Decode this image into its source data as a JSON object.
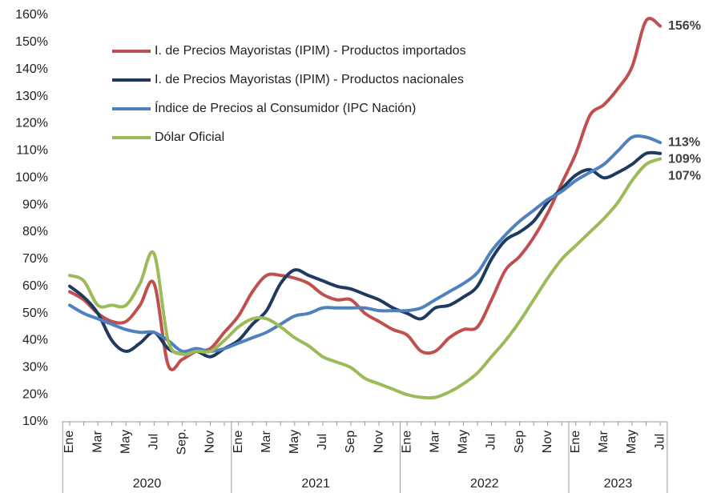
{
  "chart_data": {
    "type": "line",
    "categories": [
      "Ene",
      null,
      "Mar",
      null,
      "May",
      null,
      "Jul",
      null,
      "Sep.",
      null,
      "Nov",
      null,
      "Ene",
      null,
      "Mar",
      null,
      "May",
      null,
      "Jul",
      null,
      "Sep",
      null,
      "Nov",
      null,
      "Ene",
      null,
      "Mar",
      null,
      "May",
      null,
      "Jul",
      null,
      "Sep",
      null,
      "Nov",
      null,
      "Ene",
      null,
      "Mar",
      null,
      "May",
      null,
      "Jul"
    ],
    "years": [
      "2020",
      "2021",
      "2022",
      "2023"
    ],
    "ylim": [
      10,
      160
    ],
    "yticks": [
      {
        "value": 10,
        "label": "10%"
      },
      {
        "value": 20,
        "label": "20%"
      },
      {
        "value": 30,
        "label": "30%"
      },
      {
        "value": 40,
        "label": "40%"
      },
      {
        "value": 50,
        "label": "50%"
      },
      {
        "value": 60,
        "label": "60%"
      },
      {
        "value": 70,
        "label": "70%"
      },
      {
        "value": 80,
        "label": "80%"
      },
      {
        "value": 90,
        "label": "90%"
      },
      {
        "value": 100,
        "label": "100%"
      },
      {
        "value": 110,
        "label": "110%"
      },
      {
        "value": 120,
        "label": "120%"
      },
      {
        "value": 130,
        "label": "130%"
      },
      {
        "value": 140,
        "label": "140%"
      },
      {
        "value": 150,
        "label": "150%"
      },
      {
        "value": 160,
        "label": "160%"
      }
    ],
    "grid": false,
    "legend": "top-left",
    "series": [
      {
        "name": "I. de Precios Mayoristas (IPIM) - Productos importados",
        "color": "#c0504d",
        "end_label": "156%",
        "values": [
          58,
          55,
          50,
          47,
          47,
          53,
          61,
          31,
          33,
          36,
          37,
          43,
          49,
          58,
          64,
          64,
          63,
          61,
          57,
          55,
          55,
          50,
          47,
          44,
          42,
          36,
          36,
          41,
          44,
          45,
          55,
          66,
          71,
          78,
          87,
          98,
          109,
          123,
          127,
          133,
          141,
          158,
          156
        ]
      },
      {
        "name": "I. de Precios Mayoristas (IPIM) - Productos nacionales",
        "color": "#1f3a5f",
        "end_label": "109%",
        "values": [
          60,
          56,
          50,
          40,
          36,
          39,
          43,
          37,
          35,
          36,
          34,
          37,
          40,
          46,
          51,
          61,
          66,
          64,
          62,
          60,
          59,
          57,
          55,
          52,
          50,
          48,
          52,
          53,
          56,
          60,
          70,
          77,
          80,
          84,
          91,
          96,
          101,
          103,
          100,
          102,
          105,
          109,
          109
        ]
      },
      {
        "name": "Índice de Precios al Consumidor (IPC Nación)",
        "color": "#4f81bd",
        "end_label": "113%",
        "values": [
          53,
          50,
          48,
          46,
          44,
          43,
          43,
          40,
          36,
          37,
          36,
          37,
          39,
          41,
          43,
          46,
          49,
          50,
          52,
          52,
          52,
          52,
          51,
          51,
          51,
          52,
          55,
          58,
          61,
          65,
          73,
          79,
          84,
          88,
          92,
          95,
          99,
          102,
          105,
          110,
          115,
          115,
          113
        ]
      },
      {
        "name": "Dólar Oficial",
        "color": "#9bbb59",
        "end_label": "107%",
        "values": [
          64,
          62,
          53,
          53,
          53,
          61,
          72,
          40,
          35,
          36,
          36,
          40,
          45,
          48,
          48,
          45,
          41,
          38,
          34,
          32,
          30,
          26,
          24,
          22,
          20,
          19,
          19,
          21,
          24,
          28,
          34,
          40,
          47,
          55,
          63,
          70,
          75,
          80,
          85,
          91,
          99,
          105,
          107
        ]
      }
    ]
  }
}
